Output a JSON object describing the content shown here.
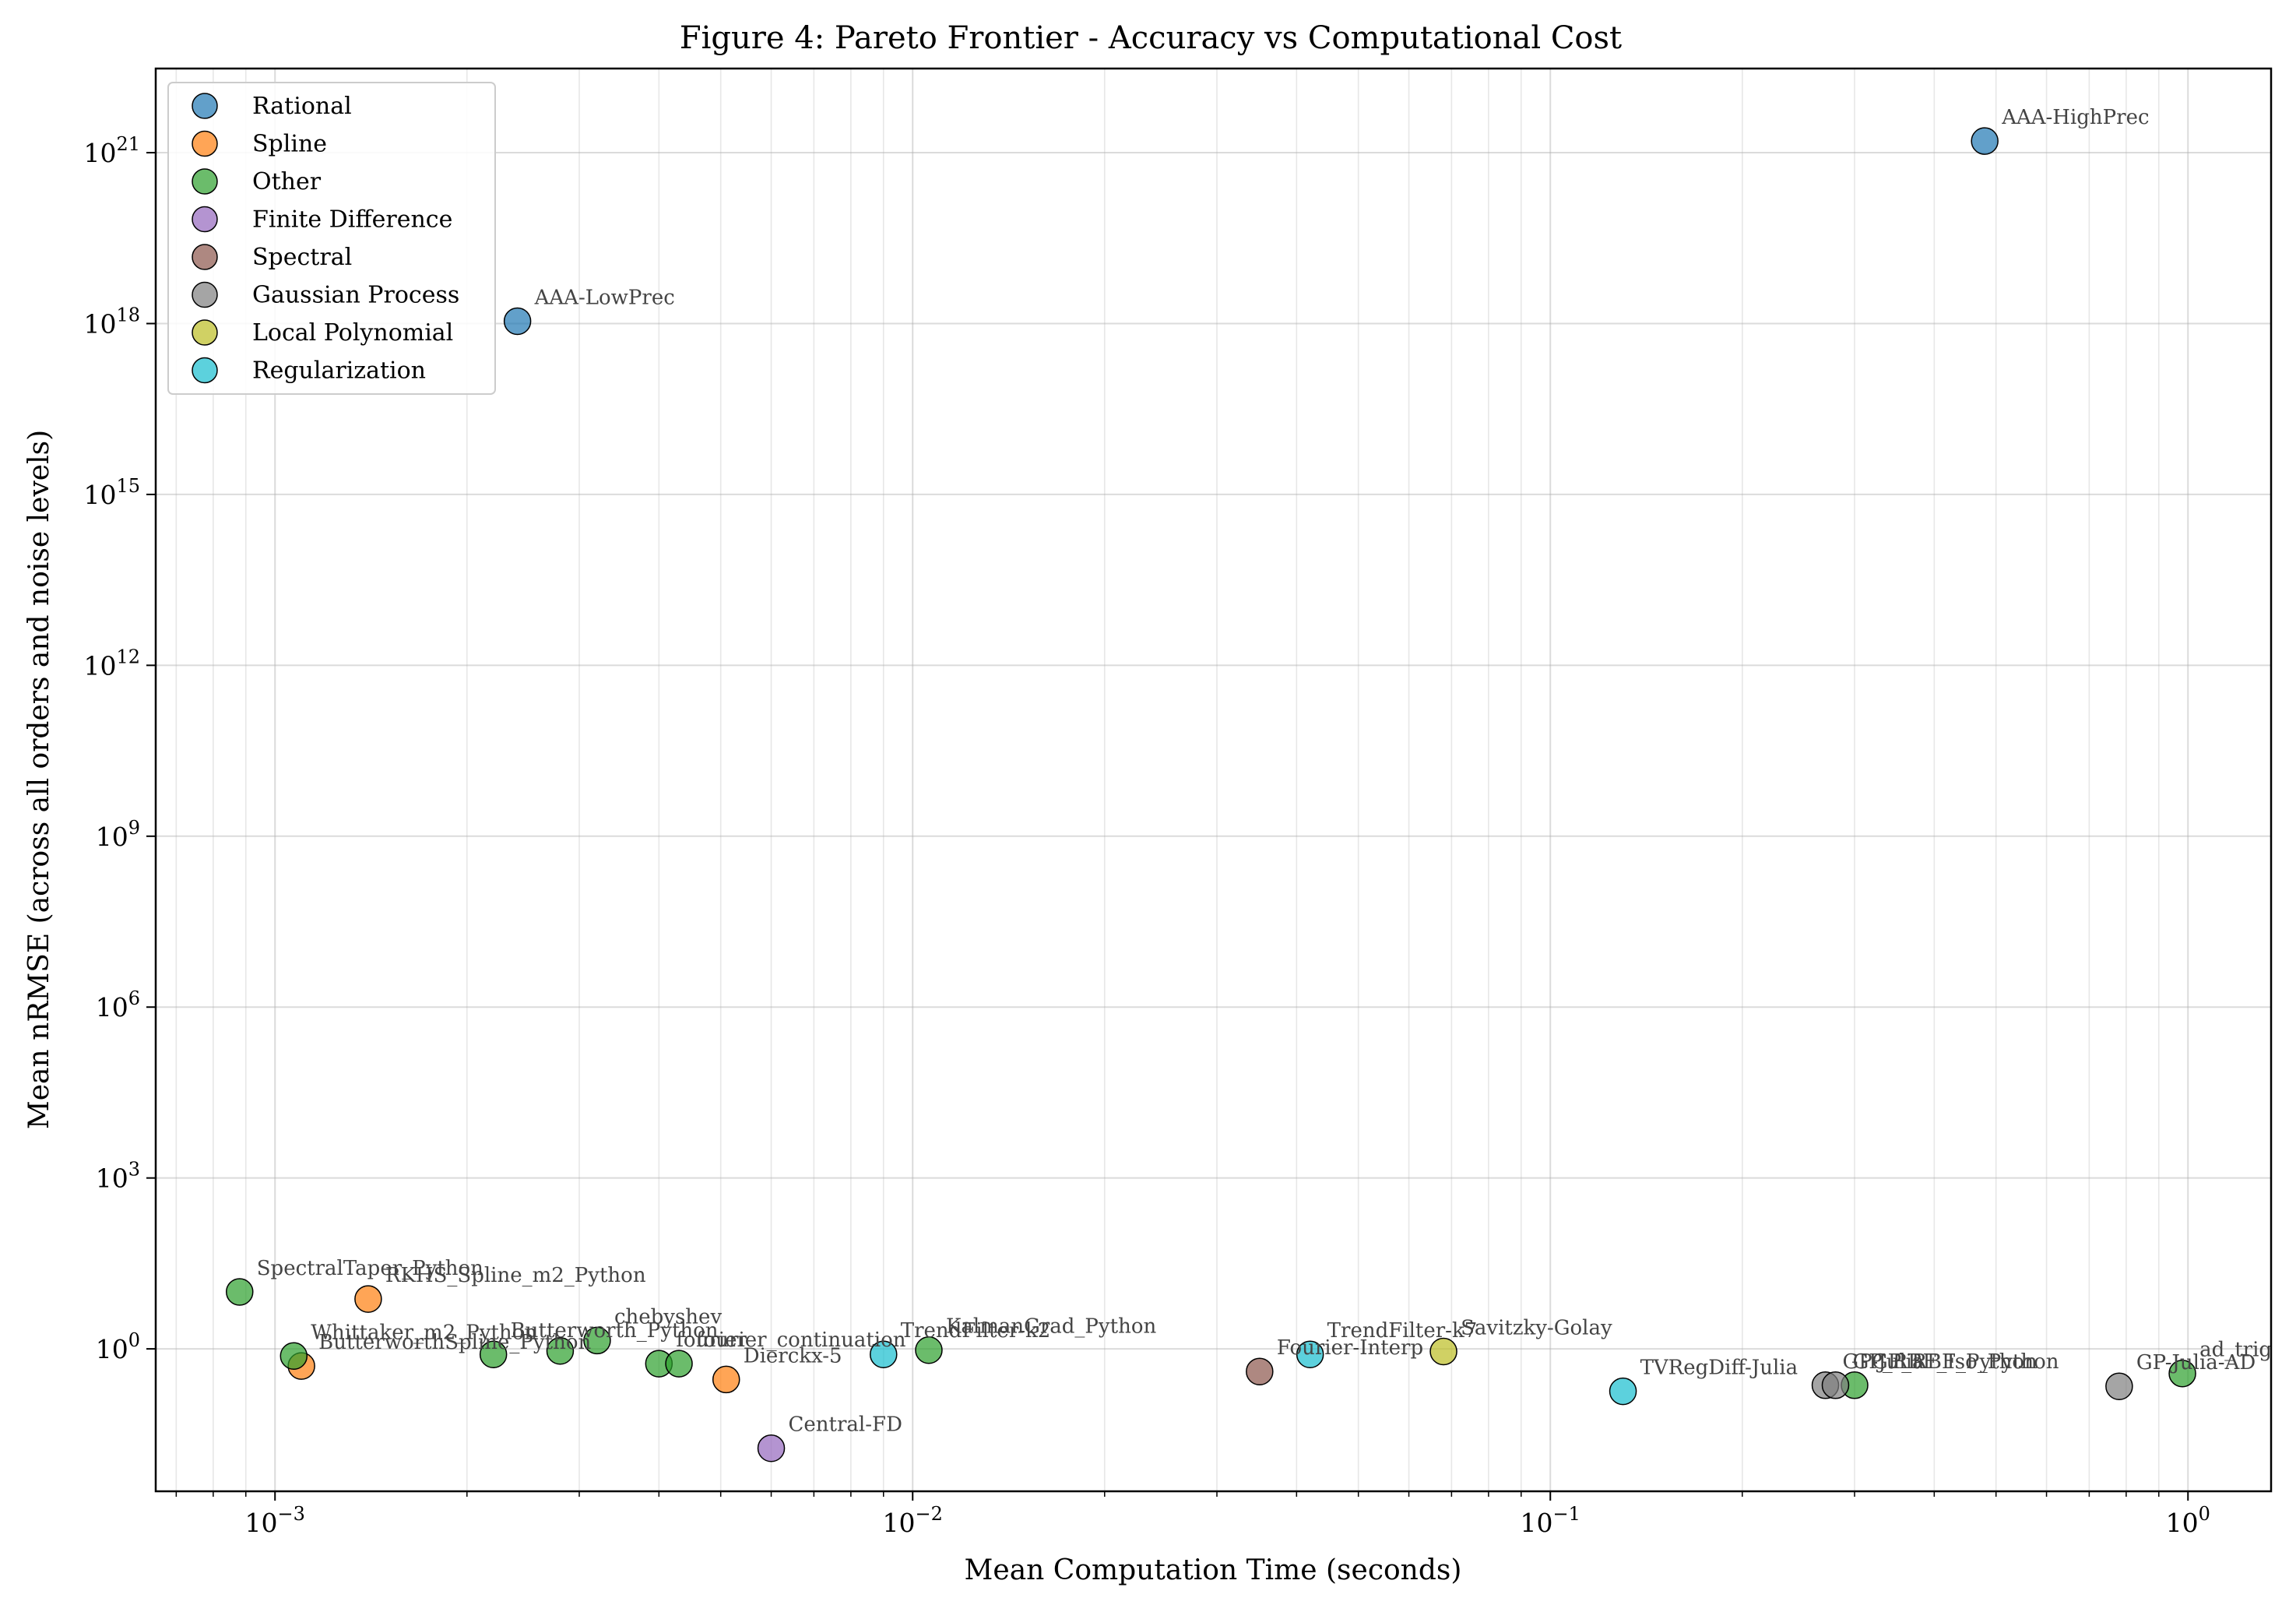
{
  "chart_data": {
    "type": "scatter",
    "title": "Figure 4: Pareto Frontier - Accuracy vs Computational Cost",
    "xlabel": "Mean Computation Time (seconds)",
    "ylabel": "Mean nRMSE (across all orders and noise levels)",
    "xscale": "log",
    "yscale": "log",
    "xlim": [
      0.00065,
      1.35
    ],
    "ylim": [
      0.00316,
      3e+22
    ],
    "grid": true,
    "legend_position": "top-left",
    "x_ticks": [
      {
        "value": 0.001,
        "base": "10",
        "exp": "−3"
      },
      {
        "value": 0.01,
        "base": "10",
        "exp": "−2"
      },
      {
        "value": 0.1,
        "base": "10",
        "exp": "−1"
      },
      {
        "value": 1,
        "base": "10",
        "exp": "0"
      }
    ],
    "y_ticks": [
      {
        "value": 1,
        "base": "10",
        "exp": "0"
      },
      {
        "value": 1000,
        "base": "10",
        "exp": "3"
      },
      {
        "value": 1000000.0,
        "base": "10",
        "exp": "6"
      },
      {
        "value": 1000000000.0,
        "base": "10",
        "exp": "9"
      },
      {
        "value": 1000000000000.0,
        "base": "10",
        "exp": "12"
      },
      {
        "value": 1000000000000000.0,
        "base": "10",
        "exp": "15"
      },
      {
        "value": 1e+18,
        "base": "10",
        "exp": "18"
      },
      {
        "value": 1e+21,
        "base": "10",
        "exp": "21"
      }
    ],
    "series": [
      {
        "name": "Rational",
        "color": "#1f77b4",
        "points": [
          {
            "x": 0.0024,
            "y": 1.1e+18,
            "label": "AAA-LowPrec"
          },
          {
            "x": 0.48,
            "y": 1.6e+21,
            "label": "AAA-HighPrec"
          }
        ]
      },
      {
        "name": "Spline",
        "color": "#ff7f0e",
        "points": [
          {
            "x": 0.0014,
            "y": 7.5,
            "label": "RKHS_Spline_m2_Python"
          },
          {
            "x": 0.0011,
            "y": 0.5,
            "label": "ButterworthSpline_Python"
          },
          {
            "x": 0.0051,
            "y": 0.29,
            "label": "Dierckx-5"
          }
        ]
      },
      {
        "name": "Other",
        "color": "#2ca02c",
        "points": [
          {
            "x": 0.00088,
            "y": 10,
            "label": "SpectralTaper_Python"
          },
          {
            "x": 0.00107,
            "y": 0.75,
            "label": "Whittaker_m2_Python"
          },
          {
            "x": 0.0022,
            "y": 0.8,
            "label": "Butterworth_Python"
          },
          {
            "x": 0.0028,
            "y": 0.92,
            "label": ""
          },
          {
            "x": 0.0032,
            "y": 1.4,
            "label": "chebyshev"
          },
          {
            "x": 0.004,
            "y": 0.55,
            "label": "fourier"
          },
          {
            "x": 0.0043,
            "y": 0.55,
            "label": "fourier_continuation"
          },
          {
            "x": 0.0106,
            "y": 0.95,
            "label": "KalmanGrad_Python"
          },
          {
            "x": 0.3,
            "y": 0.23,
            "label": "GP_RBF_Python"
          },
          {
            "x": 0.98,
            "y": 0.37,
            "label": "ad_trig"
          }
        ]
      },
      {
        "name": "Finite Difference",
        "color": "#9467bd",
        "points": [
          {
            "x": 0.006,
            "y": 0.018,
            "label": "Central-FD"
          }
        ]
      },
      {
        "name": "Spectral",
        "color": "#8c564b",
        "points": [
          {
            "x": 0.035,
            "y": 0.4,
            "label": "Fourier-Interp"
          }
        ]
      },
      {
        "name": "Gaussian Process",
        "color": "#7f7f7f",
        "points": [
          {
            "x": 0.27,
            "y": 0.23,
            "label": "GP-Julia"
          },
          {
            "x": 0.28,
            "y": 0.23,
            "label": "GP_RBF_Iso_Python"
          },
          {
            "x": 0.78,
            "y": 0.22,
            "label": "GP-Julia-AD"
          }
        ]
      },
      {
        "name": "Local Polynomial",
        "color": "#bcbd22",
        "points": [
          {
            "x": 0.068,
            "y": 0.9,
            "label": "Savitzky-Golay"
          }
        ]
      },
      {
        "name": "Regularization",
        "color": "#17becf",
        "points": [
          {
            "x": 0.009,
            "y": 0.8,
            "label": "TrendFilter-k2"
          },
          {
            "x": 0.042,
            "y": 0.8,
            "label": "TrendFilter-k7"
          },
          {
            "x": 0.13,
            "y": 0.18,
            "label": "TVRegDiff-Julia"
          }
        ]
      }
    ]
  }
}
